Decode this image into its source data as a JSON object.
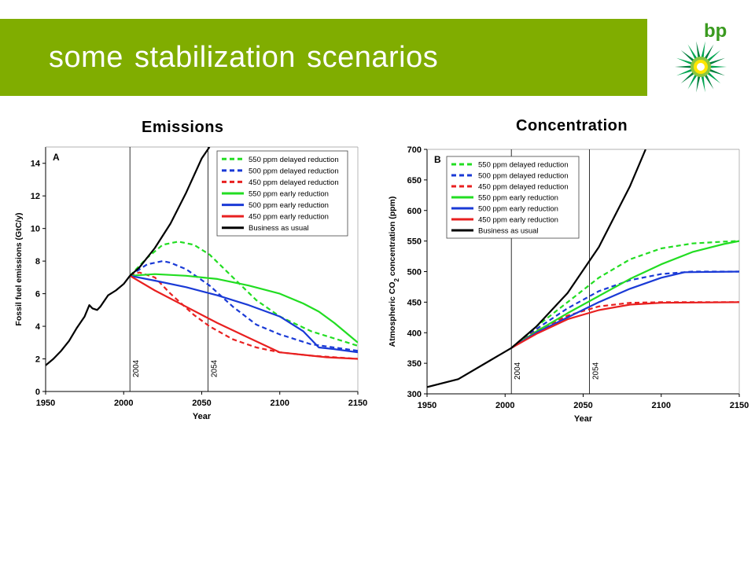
{
  "slide": {
    "title": "some stabilization scenarios"
  },
  "logo": {
    "text": "bp",
    "colors": [
      "#007f3d",
      "#00a651",
      "#8dc63f",
      "#ffe600",
      "#ffffff"
    ]
  },
  "panels": [
    {
      "heading": "Emissions"
    },
    {
      "heading": "Concentration"
    }
  ],
  "chart_data": [
    {
      "type": "line",
      "panel_label": "A",
      "xlabel": "Year",
      "ylabel": "Fossil fuel emissions (GtC/y)",
      "xlim": [
        1950,
        2150
      ],
      "ylim": [
        0,
        15
      ],
      "xticks": [
        1950,
        2000,
        2050,
        2100,
        2150
      ],
      "yticks": [
        0,
        2,
        4,
        6,
        8,
        10,
        12,
        14
      ],
      "vlines": [
        {
          "x": 2004,
          "label": "2004"
        },
        {
          "x": 2054,
          "label": "2054"
        }
      ],
      "legend_position": "top-right",
      "series": [
        {
          "name": "550 ppm delayed reduction",
          "color": "#22dd22",
          "dash": true,
          "x": [
            2004,
            2015,
            2025,
            2035,
            2045,
            2055,
            2070,
            2085,
            2100,
            2120,
            2150
          ],
          "y": [
            7.1,
            8.2,
            9.0,
            9.2,
            9.0,
            8.4,
            7.0,
            5.6,
            4.6,
            3.7,
            2.8
          ]
        },
        {
          "name": "500 ppm delayed reduction",
          "color": "#1a3ad6",
          "dash": true,
          "x": [
            2004,
            2015,
            2025,
            2030,
            2040,
            2055,
            2070,
            2085,
            2100,
            2120,
            2150
          ],
          "y": [
            7.1,
            7.8,
            8.0,
            7.9,
            7.5,
            6.5,
            5.2,
            4.1,
            3.5,
            2.9,
            2.5
          ]
        },
        {
          "name": "450 ppm delayed reduction",
          "color": "#e82020",
          "dash": true,
          "x": [
            2004,
            2010,
            2020,
            2030,
            2045,
            2055,
            2070,
            2085,
            2100,
            2120,
            2150
          ],
          "y": [
            7.1,
            7.3,
            7.0,
            6.0,
            4.7,
            4.0,
            3.2,
            2.7,
            2.4,
            2.2,
            2.0
          ]
        },
        {
          "name": "550 ppm early reduction",
          "color": "#22dd22",
          "dash": false,
          "x": [
            2004,
            2020,
            2040,
            2060,
            2080,
            2100,
            2115,
            2125,
            2135,
            2145,
            2150
          ],
          "y": [
            7.1,
            7.2,
            7.1,
            6.9,
            6.5,
            6.0,
            5.4,
            4.9,
            4.2,
            3.4,
            3.0
          ]
        },
        {
          "name": "500 ppm early reduction",
          "color": "#1a3ad6",
          "dash": false,
          "x": [
            2004,
            2020,
            2040,
            2060,
            2080,
            2100,
            2115,
            2125,
            2135,
            2150
          ],
          "y": [
            7.1,
            6.8,
            6.4,
            5.9,
            5.3,
            4.6,
            3.7,
            2.7,
            2.6,
            2.4
          ]
        },
        {
          "name": "450 ppm early reduction",
          "color": "#e82020",
          "dash": false,
          "x": [
            2004,
            2020,
            2040,
            2060,
            2080,
            2100,
            2110,
            2130,
            2150
          ],
          "y": [
            7.1,
            6.2,
            5.2,
            4.2,
            3.3,
            2.4,
            2.3,
            2.1,
            2.0
          ]
        },
        {
          "name": "Business as usual",
          "color": "#000000",
          "dash": false,
          "x": [
            1950,
            1955,
            1960,
            1965,
            1970,
            1975,
            1978,
            1980,
            1983,
            1985,
            1990,
            1995,
            2000,
            2004,
            2010,
            2020,
            2030,
            2040,
            2050,
            2055
          ],
          "y": [
            1.6,
            2.0,
            2.5,
            3.1,
            3.9,
            4.6,
            5.3,
            5.1,
            5.0,
            5.2,
            5.9,
            6.2,
            6.6,
            7.1,
            7.6,
            8.8,
            10.3,
            12.2,
            14.3,
            15.0
          ]
        }
      ]
    },
    {
      "type": "line",
      "panel_label": "B",
      "xlabel": "Year",
      "ylabel": "Atmospheric CO2 concentration (ppm)",
      "xlim": [
        1950,
        2150
      ],
      "ylim": [
        300,
        700
      ],
      "xticks": [
        1950,
        2000,
        2050,
        2100,
        2150
      ],
      "yticks": [
        300,
        350,
        400,
        450,
        500,
        550,
        600,
        650,
        700
      ],
      "vlines": [
        {
          "x": 2004,
          "label": "2004"
        },
        {
          "x": 2054,
          "label": "2054"
        }
      ],
      "legend_position": "top-left",
      "series": [
        {
          "name": "550 ppm delayed reduction",
          "color": "#22dd22",
          "dash": true,
          "x": [
            2004,
            2020,
            2040,
            2060,
            2080,
            2100,
            2120,
            2140,
            2150
          ],
          "y": [
            375,
            410,
            450,
            490,
            520,
            538,
            546,
            549,
            550
          ]
        },
        {
          "name": "500 ppm delayed reduction",
          "color": "#1a3ad6",
          "dash": true,
          "x": [
            2004,
            2020,
            2040,
            2060,
            2080,
            2100,
            2120,
            2150
          ],
          "y": [
            375,
            406,
            440,
            468,
            486,
            496,
            500,
            500
          ]
        },
        {
          "name": "450 ppm delayed reduction",
          "color": "#e82020",
          "dash": true,
          "x": [
            2004,
            2020,
            2040,
            2060,
            2080,
            2100,
            2120,
            2150
          ],
          "y": [
            375,
            403,
            428,
            443,
            449,
            450,
            450,
            450
          ]
        },
        {
          "name": "550 ppm early reduction",
          "color": "#22dd22",
          "dash": false,
          "x": [
            2004,
            2020,
            2040,
            2060,
            2080,
            2100,
            2120,
            2140,
            2150
          ],
          "y": [
            375,
            402,
            432,
            460,
            488,
            512,
            532,
            545,
            550
          ]
        },
        {
          "name": "500 ppm early reduction",
          "color": "#1a3ad6",
          "dash": false,
          "x": [
            2004,
            2020,
            2040,
            2060,
            2080,
            2100,
            2115,
            2150
          ],
          "y": [
            375,
            400,
            425,
            450,
            472,
            490,
            499,
            500
          ]
        },
        {
          "name": "450 ppm early reduction",
          "color": "#e82020",
          "dash": false,
          "x": [
            2004,
            2020,
            2040,
            2060,
            2080,
            2100,
            2150
          ],
          "y": [
            375,
            398,
            422,
            437,
            446,
            449,
            450
          ]
        },
        {
          "name": "Business as usual",
          "color": "#000000",
          "dash": false,
          "x": [
            1950,
            1970,
            1990,
            2004,
            2020,
            2040,
            2060,
            2080,
            2090
          ],
          "y": [
            311,
            324,
            354,
            375,
            410,
            465,
            540,
            640,
            700
          ]
        }
      ]
    }
  ]
}
